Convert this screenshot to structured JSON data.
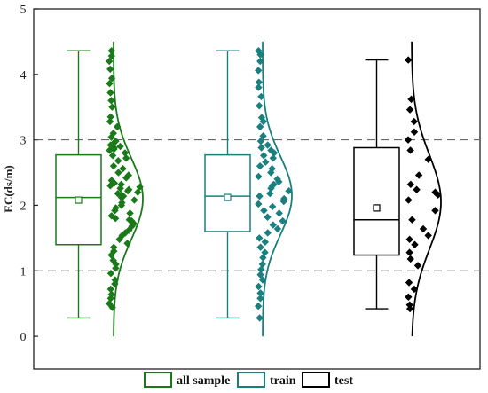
{
  "chart_data": {
    "type": "raincloud",
    "title": "",
    "xlabel": "",
    "ylabel": "EC(ds/m)",
    "ylim": [
      -0.5,
      5
    ],
    "yticks": [
      0,
      1,
      2,
      3,
      4,
      5
    ],
    "reference_lines": [
      1,
      3
    ],
    "grid": false,
    "legend_position": "bottom",
    "series": [
      {
        "name": "all sample",
        "color": "#1a7a1a",
        "box": {
          "whisker_low": 0.28,
          "q1": 1.4,
          "median": 2.12,
          "q3": 2.77,
          "whisker_high": 4.36,
          "mean": 2.08
        },
        "density": {
          "peak": 2.1,
          "sigma": 0.62
        },
        "points": [
          4.36,
          4.28,
          4.2,
          4.08,
          3.94,
          3.86,
          3.72,
          3.6,
          3.5,
          3.35,
          3.28,
          3.2,
          3.1,
          3.04,
          2.98,
          2.94,
          2.92,
          2.9,
          2.88,
          2.86,
          2.84,
          2.8,
          2.76,
          2.72,
          2.68,
          2.6,
          2.56,
          2.5,
          2.46,
          2.42,
          2.38,
          2.34,
          2.32,
          2.3,
          2.28,
          2.26,
          2.24,
          2.22,
          2.2,
          2.18,
          2.16,
          2.14,
          2.12,
          2.08,
          2.04,
          2.0,
          1.96,
          1.92,
          1.88,
          1.84,
          1.8,
          1.78,
          1.76,
          1.72,
          1.68,
          1.62,
          1.58,
          1.54,
          1.48,
          1.42,
          1.36,
          1.3,
          1.24,
          1.16,
          1.1,
          1.04,
          0.96,
          0.86,
          0.8,
          0.72,
          0.64,
          0.58,
          0.5,
          0.44
        ]
      },
      {
        "name": "train",
        "color": "#1a7f7f",
        "box": {
          "whisker_low": 0.28,
          "q1": 1.6,
          "median": 2.14,
          "q3": 2.77,
          "whisker_high": 4.36,
          "mean": 2.12
        },
        "density": {
          "peak": 2.15,
          "sigma": 0.6
        },
        "points": [
          4.36,
          4.3,
          4.2,
          4.06,
          3.88,
          3.8,
          3.66,
          3.52,
          3.34,
          3.28,
          3.2,
          3.06,
          2.98,
          2.92,
          2.88,
          2.84,
          2.8,
          2.76,
          2.72,
          2.66,
          2.6,
          2.56,
          2.5,
          2.44,
          2.4,
          2.36,
          2.32,
          2.3,
          2.26,
          2.22,
          2.18,
          2.14,
          2.1,
          2.06,
          2.02,
          1.98,
          1.92,
          1.88,
          1.82,
          1.76,
          1.7,
          1.64,
          1.58,
          1.5,
          1.44,
          1.36,
          1.28,
          1.2,
          1.1,
          1.02,
          0.94,
          0.86,
          0.76,
          0.66,
          0.58,
          0.46,
          0.28
        ]
      },
      {
        "name": "test",
        "color": "#000000",
        "box": {
          "whisker_low": 0.42,
          "q1": 1.24,
          "median": 1.78,
          "q3": 2.88,
          "whisker_high": 4.22,
          "mean": 1.96
        },
        "density": {
          "peak": 2.05,
          "sigma": 0.72
        },
        "points": [
          4.22,
          3.62,
          3.46,
          3.28,
          3.12,
          3.0,
          2.84,
          2.7,
          2.46,
          2.32,
          2.24,
          2.2,
          2.16,
          2.08,
          1.92,
          1.78,
          1.64,
          1.54,
          1.48,
          1.4,
          1.28,
          1.18,
          1.08,
          0.82,
          0.72,
          0.6,
          0.48,
          0.42
        ]
      }
    ]
  }
}
